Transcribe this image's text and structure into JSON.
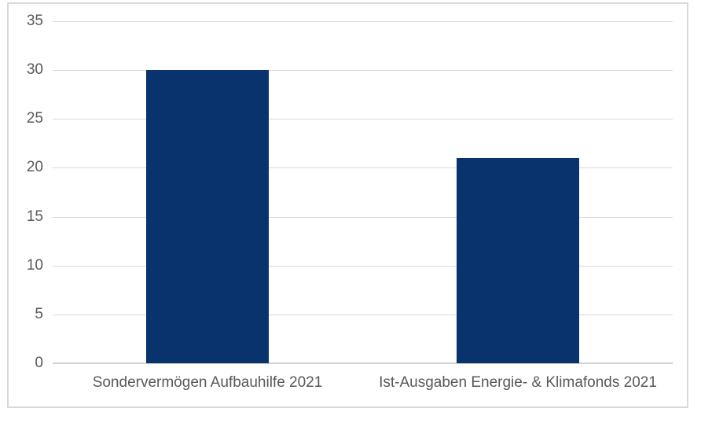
{
  "chart_data": {
    "type": "bar",
    "title": "",
    "xlabel": "",
    "ylabel": "",
    "categories": [
      "Sondervermögen Aufbauhilfe 2021",
      "Ist-Ausgaben Energie- & Klimafonds 2021"
    ],
    "values": [
      30,
      21
    ],
    "ylim": [
      0,
      35
    ],
    "yticks": [
      0,
      5,
      10,
      15,
      20,
      25,
      30,
      35
    ],
    "grid": true,
    "legend": "none",
    "colors": {
      "bar": "#08336c",
      "gridline": "#d9d9d9",
      "axis_line": "#d2d2d2",
      "label": "#595959",
      "frame_border": "#d9d9d9",
      "background": "#ffffff"
    }
  }
}
